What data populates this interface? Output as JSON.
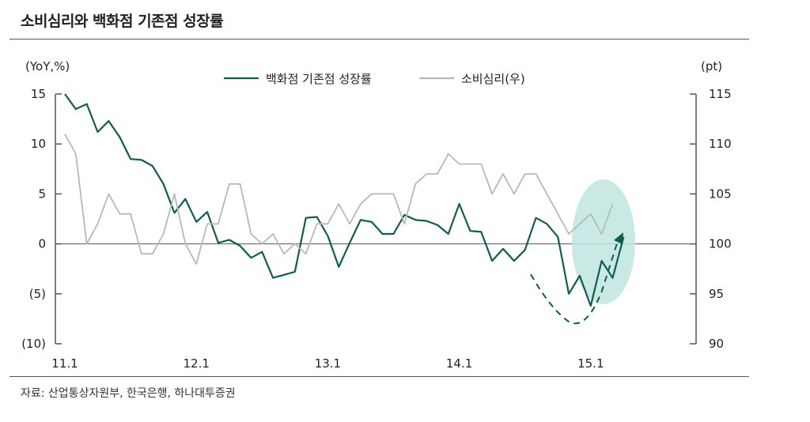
{
  "header": {
    "title": "소비심리와 백화점 기존점 성장률"
  },
  "footer": {
    "source": "자료: 산업통상자원부, 한국은행, 하나대투증권"
  },
  "colors": {
    "dept": "#0e5e4e",
    "sentiment": "#b8b8b8",
    "highlight": "#bfe6df",
    "axis": "#555555"
  },
  "chart_data": {
    "type": "line",
    "left_axis": {
      "unit_label": "(YoY,%)",
      "ylim": [
        -10,
        15
      ],
      "ticks": [
        15,
        10,
        5,
        0,
        -5,
        -10
      ],
      "tick_labels": [
        "15",
        "10",
        "5",
        "0",
        "(5)",
        "(10)"
      ]
    },
    "right_axis": {
      "unit_label": "(pt)",
      "ylim": [
        90,
        115
      ],
      "ticks": [
        115,
        110,
        105,
        100,
        95,
        90
      ],
      "tick_labels": [
        "115",
        "110",
        "105",
        "100",
        "95",
        "90"
      ]
    },
    "x_tick_labels": [
      "11.1",
      "12.1",
      "13.1",
      "14.1",
      "15.1"
    ],
    "x_tick_index": [
      0,
      12,
      24,
      36,
      48
    ],
    "legend_position": "top-center",
    "series": [
      {
        "name": "백화점 기존점 성장률",
        "axis": "left",
        "color": "#0e5e4e",
        "values": [
          15,
          13.5,
          14,
          11.2,
          12.3,
          10.7,
          8.5,
          8.4,
          7.8,
          6,
          3.1,
          4.5,
          2.2,
          3.2,
          0.1,
          0.4,
          -0.2,
          -1.4,
          -0.8,
          -3.4,
          -3.1,
          -2.8,
          2.6,
          2.7,
          0.8,
          -2.3,
          0.1,
          2.4,
          2.2,
          1,
          1,
          2.9,
          2.4,
          2.3,
          1.9,
          1,
          4,
          1.3,
          1.2,
          -1.7,
          -0.5,
          -1.7,
          -0.6,
          2.6,
          2,
          0.7,
          -5,
          -3.2,
          -6.2,
          -1.7,
          -3.4,
          0.7
        ]
      },
      {
        "name": "소비심리(우)",
        "axis": "right",
        "color": "#b8b8b8",
        "values": [
          111,
          109,
          100,
          102,
          105,
          103,
          103,
          99,
          99,
          101,
          105,
          100,
          98,
          102,
          102,
          106,
          106,
          101,
          100,
          101,
          99,
          100,
          99,
          102,
          102,
          104,
          102,
          104,
          105,
          105,
          105,
          102,
          106,
          107,
          107,
          109,
          108,
          108,
          108,
          105,
          107,
          105,
          107,
          107,
          105,
          103,
          101,
          102,
          103,
          101,
          104
        ]
      }
    ],
    "annotations": [
      {
        "type": "highlight-ellipse",
        "around": "15.1 recent points"
      },
      {
        "type": "dashed-arrow",
        "shape": "dip-then-rise"
      }
    ]
  }
}
